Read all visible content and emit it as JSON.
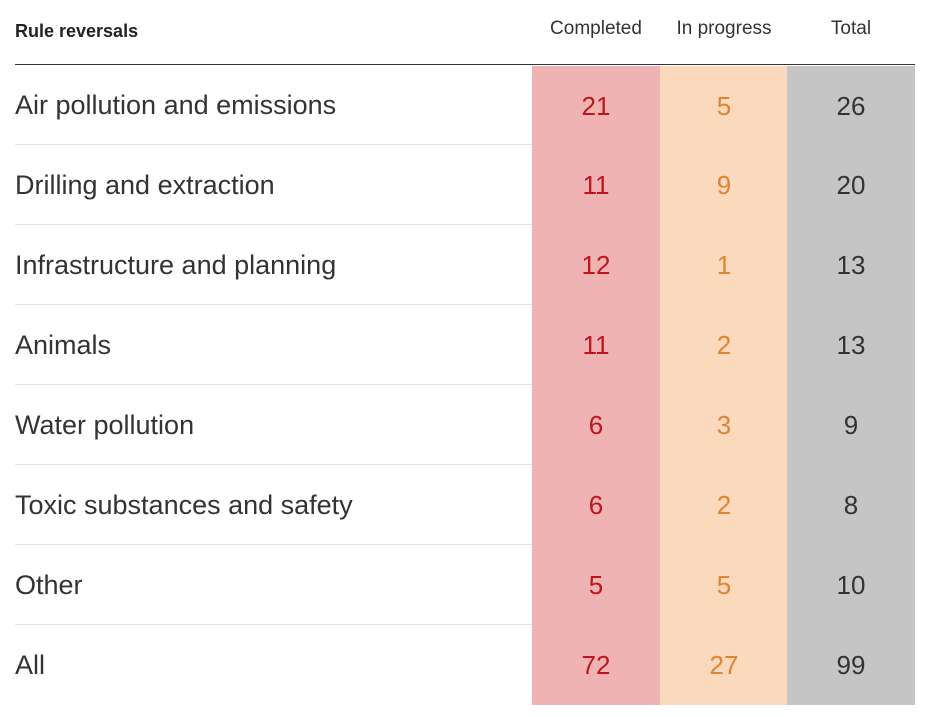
{
  "colors": {
    "completed_bg": "#efb3b3",
    "completed_text": "#c0141c",
    "in_progress_bg": "#fad9bd",
    "in_progress_text": "#e08431",
    "total_bg": "#c5c5c5",
    "total_text": "#333333"
  },
  "chart_data": {
    "type": "table",
    "title": "Rule reversals",
    "columns": [
      "Completed",
      "In progress",
      "Total"
    ],
    "rows": [
      {
        "category": "Air pollution and emissions",
        "completed": 21,
        "in_progress": 5,
        "total": 26
      },
      {
        "category": "Drilling and extraction",
        "completed": 11,
        "in_progress": 9,
        "total": 20
      },
      {
        "category": "Infrastructure and planning",
        "completed": 12,
        "in_progress": 1,
        "total": 13
      },
      {
        "category": "Animals",
        "completed": 11,
        "in_progress": 2,
        "total": 13
      },
      {
        "category": "Water pollution",
        "completed": 6,
        "in_progress": 3,
        "total": 9
      },
      {
        "category": "Toxic substances and safety",
        "completed": 6,
        "in_progress": 2,
        "total": 8
      },
      {
        "category": "Other",
        "completed": 5,
        "in_progress": 5,
        "total": 10
      },
      {
        "category": "All",
        "completed": 72,
        "in_progress": 27,
        "total": 99
      }
    ]
  }
}
